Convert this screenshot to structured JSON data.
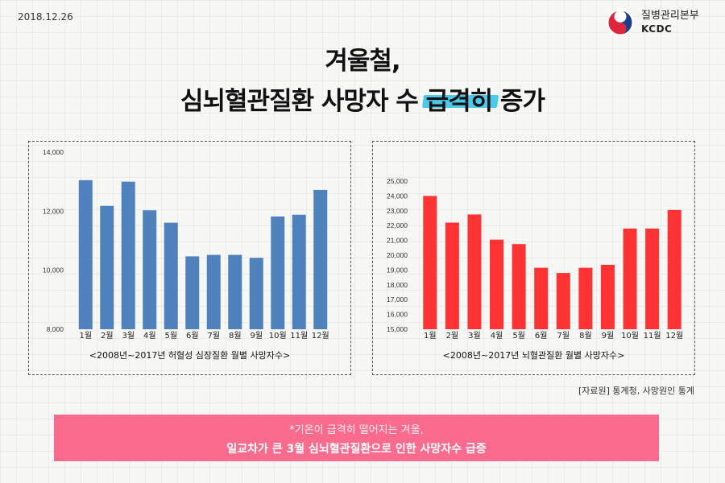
{
  "date": "2018.12.26",
  "logo": {
    "name": "질병관리본부",
    "abbr": "KCDC"
  },
  "title": {
    "line1": "겨울철,",
    "line2_plain": "심뇌혈관질환 사망자 수 ",
    "line2_highlight": "급격히",
    "line2_end": " 증가",
    "highlight_color": "#4cc8ea"
  },
  "chart_data": [
    {
      "type": "bar",
      "title": "<2008년~2017년 허혈성 심장질환 월별 사망자수>",
      "categories": [
        "1월",
        "2월",
        "3월",
        "4월",
        "5월",
        "6월",
        "7월",
        "8월",
        "9월",
        "10월",
        "11월",
        "12월"
      ],
      "values": [
        13050,
        12180,
        13000,
        12030,
        11610,
        10470,
        10520,
        10520,
        10420,
        11820,
        11880,
        12720
      ],
      "ylim": [
        8000,
        14000
      ],
      "yticks": [
        8000,
        10000,
        12000,
        14000
      ],
      "ytick_labels": [
        "8,000",
        "10,000",
        "12,000",
        "14,000"
      ],
      "color": "#4f81bd"
    },
    {
      "type": "bar",
      "title": "<2008년~2017년 뇌혈관질환 월별 사망자수>",
      "categories": [
        "1월",
        "2월",
        "3월",
        "4월",
        "5월",
        "6월",
        "7월",
        "8월",
        "9월",
        "10월",
        "11월",
        "12월"
      ],
      "values": [
        24000,
        22200,
        22750,
        21050,
        20750,
        19150,
        18800,
        19150,
        19350,
        21800,
        21800,
        23050
      ],
      "ylim": [
        15000,
        25000
      ],
      "yticks": [
        15000,
        16000,
        17000,
        18000,
        19000,
        20000,
        21000,
        22000,
        23000,
        24000,
        25000
      ],
      "ytick_labels": [
        "15,000",
        "16,000",
        "17,000",
        "18,000",
        "19,000",
        "20,000",
        "21,000",
        "22,000",
        "23,000",
        "24,000",
        "25,000"
      ],
      "color": "#ff3333"
    }
  ],
  "source": "[자료원] 통계청, 사망원인 통계",
  "banner": {
    "line1": "*기온이 급격히 떨어지는 겨울,",
    "line2": "일교차가 큰 3월 심뇌혈관질환으로 인한 사망자수 급증",
    "color": "#fb6b8e"
  }
}
